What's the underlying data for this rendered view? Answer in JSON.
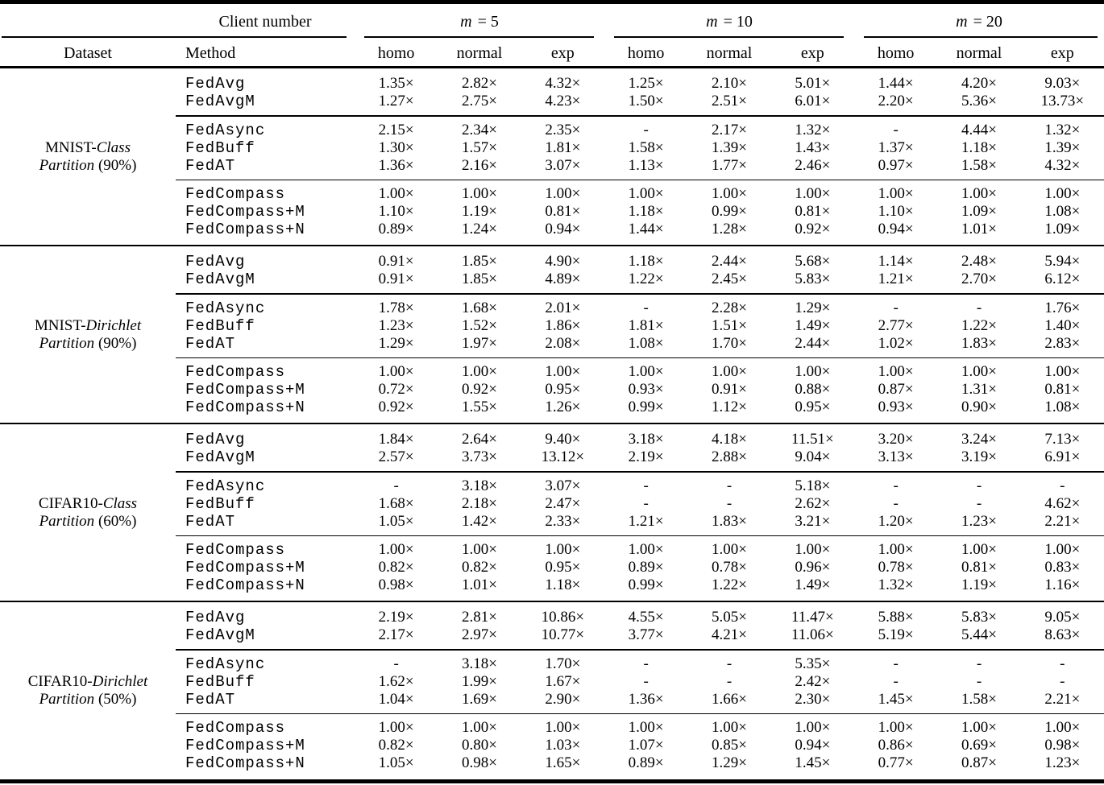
{
  "table": {
    "top_header": {
      "client_number_label": "Client number",
      "m_groups": [
        {
          "variable": "m",
          "rest": "= 5"
        },
        {
          "variable": "m",
          "rest": "= 10"
        },
        {
          "variable": "m",
          "rest": "= 20"
        }
      ]
    },
    "column_header": {
      "dataset_label": "Dataset",
      "method_label": "Method",
      "dist_labels": [
        "homo",
        "normal",
        "exp"
      ]
    },
    "groups": [
      {
        "dataset_lines": [
          {
            "segments": [
              {
                "text": "MNIST-",
                "italic": false
              },
              {
                "text": "Class",
                "italic": true
              }
            ]
          },
          {
            "segments": [
              {
                "text": "Partition",
                "italic": true
              },
              {
                "text": " (90%)",
                "italic": false
              }
            ]
          }
        ],
        "blocks": [
          {
            "rows": [
              {
                "method": "FedAvg",
                "values": [
                  "1.35×",
                  "2.82×",
                  "4.32×",
                  "1.25×",
                  "2.10×",
                  "5.01×",
                  "1.44×",
                  "4.20×",
                  "9.03×"
                ]
              },
              {
                "method": "FedAvgM",
                "values": [
                  "1.27×",
                  "2.75×",
                  "4.23×",
                  "1.50×",
                  "2.51×",
                  "6.01×",
                  "2.20×",
                  "5.36×",
                  "13.73×"
                ]
              }
            ]
          },
          {
            "rows": [
              {
                "method": "FedAsync",
                "values": [
                  "2.15×",
                  "2.34×",
                  "2.35×",
                  "-",
                  "2.17×",
                  "1.32×",
                  "-",
                  "4.44×",
                  "1.32×"
                ]
              },
              {
                "method": "FedBuff",
                "values": [
                  "1.30×",
                  "1.57×",
                  "1.81×",
                  "1.58×",
                  "1.39×",
                  "1.43×",
                  "1.37×",
                  "1.18×",
                  "1.39×"
                ]
              },
              {
                "method": "FedAT",
                "values": [
                  "1.36×",
                  "2.16×",
                  "3.07×",
                  "1.13×",
                  "1.77×",
                  "2.46×",
                  "0.97×",
                  "1.58×",
                  "4.32×"
                ]
              }
            ]
          },
          {
            "rows": [
              {
                "method": "FedCompass",
                "values": [
                  "1.00×",
                  "1.00×",
                  "1.00×",
                  "1.00×",
                  "1.00×",
                  "1.00×",
                  "1.00×",
                  "1.00×",
                  "1.00×"
                ]
              },
              {
                "method": "FedCompass+M",
                "values": [
                  "1.10×",
                  "1.19×",
                  "0.81×",
                  "1.18×",
                  "0.99×",
                  "0.81×",
                  "1.10×",
                  "1.09×",
                  "1.08×"
                ]
              },
              {
                "method": "FedCompass+N",
                "values": [
                  "0.89×",
                  "1.24×",
                  "0.94×",
                  "1.44×",
                  "1.28×",
                  "0.92×",
                  "0.94×",
                  "1.01×",
                  "1.09×"
                ]
              }
            ]
          }
        ]
      },
      {
        "dataset_lines": [
          {
            "segments": [
              {
                "text": "MNIST-",
                "italic": false
              },
              {
                "text": "Dirichlet",
                "italic": true
              }
            ]
          },
          {
            "segments": [
              {
                "text": "Partition",
                "italic": true
              },
              {
                "text": " (90%)",
                "italic": false
              }
            ]
          }
        ],
        "blocks": [
          {
            "rows": [
              {
                "method": "FedAvg",
                "values": [
                  "0.91×",
                  "1.85×",
                  "4.90×",
                  "1.18×",
                  "2.44×",
                  "5.68×",
                  "1.14×",
                  "2.48×",
                  "5.94×"
                ]
              },
              {
                "method": "FedAvgM",
                "values": [
                  "0.91×",
                  "1.85×",
                  "4.89×",
                  "1.22×",
                  "2.45×",
                  "5.83×",
                  "1.21×",
                  "2.70×",
                  "6.12×"
                ]
              }
            ]
          },
          {
            "rows": [
              {
                "method": "FedAsync",
                "values": [
                  "1.78×",
                  "1.68×",
                  "2.01×",
                  "-",
                  "2.28×",
                  "1.29×",
                  "-",
                  "-",
                  "1.76×"
                ]
              },
              {
                "method": "FedBuff",
                "values": [
                  "1.23×",
                  "1.52×",
                  "1.86×",
                  "1.81×",
                  "1.51×",
                  "1.49×",
                  "2.77×",
                  "1.22×",
                  "1.40×"
                ]
              },
              {
                "method": "FedAT",
                "values": [
                  "1.29×",
                  "1.97×",
                  "2.08×",
                  "1.08×",
                  "1.70×",
                  "2.44×",
                  "1.02×",
                  "1.83×",
                  "2.83×"
                ]
              }
            ]
          },
          {
            "rows": [
              {
                "method": "FedCompass",
                "values": [
                  "1.00×",
                  "1.00×",
                  "1.00×",
                  "1.00×",
                  "1.00×",
                  "1.00×",
                  "1.00×",
                  "1.00×",
                  "1.00×"
                ]
              },
              {
                "method": "FedCompass+M",
                "values": [
                  "0.72×",
                  "0.92×",
                  "0.95×",
                  "0.93×",
                  "0.91×",
                  "0.88×",
                  "0.87×",
                  "1.31×",
                  "0.81×"
                ]
              },
              {
                "method": "FedCompass+N",
                "values": [
                  "0.92×",
                  "1.55×",
                  "1.26×",
                  "0.99×",
                  "1.12×",
                  "0.95×",
                  "0.93×",
                  "0.90×",
                  "1.08×"
                ]
              }
            ]
          }
        ]
      },
      {
        "dataset_lines": [
          {
            "segments": [
              {
                "text": "CIFAR10-",
                "italic": false
              },
              {
                "text": "Class",
                "italic": true
              }
            ]
          },
          {
            "segments": [
              {
                "text": "Partition",
                "italic": true
              },
              {
                "text": " (60%)",
                "italic": false
              }
            ]
          }
        ],
        "blocks": [
          {
            "rows": [
              {
                "method": "FedAvg",
                "values": [
                  "1.84×",
                  "2.64×",
                  "9.40×",
                  "3.18×",
                  "4.18×",
                  "11.51×",
                  "3.20×",
                  "3.24×",
                  "7.13×"
                ]
              },
              {
                "method": "FedAvgM",
                "values": [
                  "2.57×",
                  "3.73×",
                  "13.12×",
                  "2.19×",
                  "2.88×",
                  "9.04×",
                  "3.13×",
                  "3.19×",
                  "6.91×"
                ]
              }
            ]
          },
          {
            "rows": [
              {
                "method": "FedAsync",
                "values": [
                  "-",
                  "3.18×",
                  "3.07×",
                  "-",
                  "-",
                  "5.18×",
                  "-",
                  "-",
                  "-"
                ]
              },
              {
                "method": "FedBuff",
                "values": [
                  "1.68×",
                  "2.18×",
                  "2.47×",
                  "-",
                  "-",
                  "2.62×",
                  "-",
                  "-",
                  "4.62×"
                ]
              },
              {
                "method": "FedAT",
                "values": [
                  "1.05×",
                  "1.42×",
                  "2.33×",
                  "1.21×",
                  "1.83×",
                  "3.21×",
                  "1.20×",
                  "1.23×",
                  "2.21×"
                ]
              }
            ]
          },
          {
            "rows": [
              {
                "method": "FedCompass",
                "values": [
                  "1.00×",
                  "1.00×",
                  "1.00×",
                  "1.00×",
                  "1.00×",
                  "1.00×",
                  "1.00×",
                  "1.00×",
                  "1.00×"
                ]
              },
              {
                "method": "FedCompass+M",
                "values": [
                  "0.82×",
                  "0.82×",
                  "0.95×",
                  "0.89×",
                  "0.78×",
                  "0.96×",
                  "0.78×",
                  "0.81×",
                  "0.83×"
                ]
              },
              {
                "method": "FedCompass+N",
                "values": [
                  "0.98×",
                  "1.01×",
                  "1.18×",
                  "0.99×",
                  "1.22×",
                  "1.49×",
                  "1.32×",
                  "1.19×",
                  "1.16×"
                ]
              }
            ]
          }
        ]
      },
      {
        "dataset_lines": [
          {
            "segments": [
              {
                "text": "CIFAR10-",
                "italic": false
              },
              {
                "text": "Dirichlet",
                "italic": true
              }
            ]
          },
          {
            "segments": [
              {
                "text": "Partition",
                "italic": true
              },
              {
                "text": " (50%)",
                "italic": false
              }
            ]
          }
        ],
        "blocks": [
          {
            "rows": [
              {
                "method": "FedAvg",
                "values": [
                  "2.19×",
                  "2.81×",
                  "10.86×",
                  "4.55×",
                  "5.05×",
                  "11.47×",
                  "5.88×",
                  "5.83×",
                  "9.05×"
                ]
              },
              {
                "method": "FedAvgM",
                "values": [
                  "2.17×",
                  "2.97×",
                  "10.77×",
                  "3.77×",
                  "4.21×",
                  "11.06×",
                  "5.19×",
                  "5.44×",
                  "8.63×"
                ]
              }
            ]
          },
          {
            "rows": [
              {
                "method": "FedAsync",
                "values": [
                  "-",
                  "3.18×",
                  "1.70×",
                  "-",
                  "-",
                  "5.35×",
                  "-",
                  "-",
                  "-"
                ]
              },
              {
                "method": "FedBuff",
                "values": [
                  "1.62×",
                  "1.99×",
                  "1.67×",
                  "-",
                  "-",
                  "2.42×",
                  "-",
                  "-",
                  "-"
                ]
              },
              {
                "method": "FedAT",
                "values": [
                  "1.04×",
                  "1.69×",
                  "2.90×",
                  "1.36×",
                  "1.66×",
                  "2.30×",
                  "1.45×",
                  "1.58×",
                  "2.21×"
                ]
              }
            ]
          },
          {
            "rows": [
              {
                "method": "FedCompass",
                "values": [
                  "1.00×",
                  "1.00×",
                  "1.00×",
                  "1.00×",
                  "1.00×",
                  "1.00×",
                  "1.00×",
                  "1.00×",
                  "1.00×"
                ]
              },
              {
                "method": "FedCompass+M",
                "values": [
                  "0.82×",
                  "0.80×",
                  "1.03×",
                  "1.07×",
                  "0.85×",
                  "0.94×",
                  "0.86×",
                  "0.69×",
                  "0.98×"
                ]
              },
              {
                "method": "FedCompass+N",
                "values": [
                  "1.05×",
                  "0.98×",
                  "1.65×",
                  "0.89×",
                  "1.29×",
                  "1.45×",
                  "0.77×",
                  "0.87×",
                  "1.23×"
                ]
              }
            ]
          }
        ]
      }
    ]
  }
}
